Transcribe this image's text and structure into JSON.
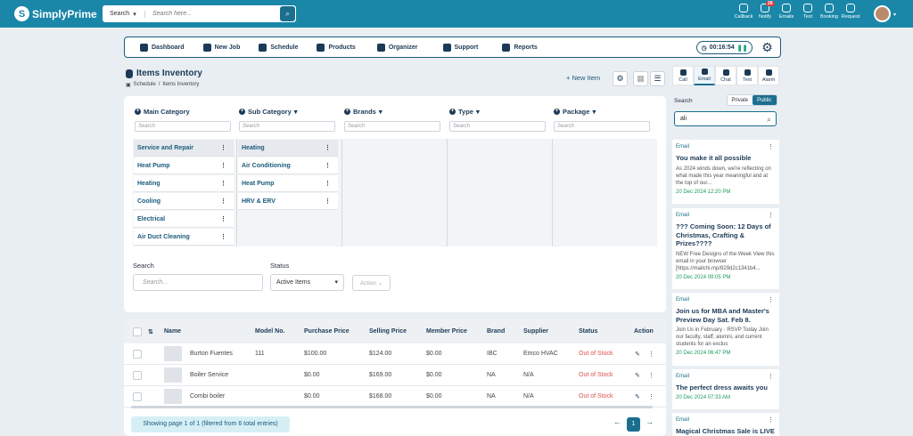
{
  "app": {
    "logo_text": "SimplyPrime"
  },
  "top_search": {
    "scope": "Search",
    "placeholder": "Search here..."
  },
  "top_actions": [
    {
      "label": "Callback",
      "icon": "phone-icon"
    },
    {
      "label": "Notify",
      "icon": "bell-icon",
      "badge": "28"
    },
    {
      "label": "Emails",
      "icon": "mail-icon"
    },
    {
      "label": "Text",
      "icon": "text-icon"
    },
    {
      "label": "Booking",
      "icon": "calendar-icon"
    },
    {
      "label": "Request",
      "icon": "chat-icon"
    }
  ],
  "nav": [
    {
      "label": "Dashboard",
      "icon": "dashboard-icon"
    },
    {
      "label": "New Job",
      "icon": "new-job-icon"
    },
    {
      "label": "Schedule",
      "icon": "schedule-icon"
    },
    {
      "label": "Products",
      "icon": "products-icon"
    },
    {
      "label": "Organizer",
      "icon": "organizer-icon"
    },
    {
      "label": "Support",
      "icon": "support-icon"
    },
    {
      "label": "Reports",
      "icon": "reports-icon"
    }
  ],
  "timer": "00:16:54",
  "page": {
    "title": "Items Inventory",
    "breadcrumb": [
      "Schedule",
      "/",
      "Items Inventory"
    ],
    "new_item_label": "+ New Item"
  },
  "filters": {
    "columns": [
      {
        "label": "Main Category",
        "placeholder": "Search"
      },
      {
        "label": "Sub Category",
        "placeholder": "Search"
      },
      {
        "label": "Brands",
        "placeholder": "Search"
      },
      {
        "label": "Type",
        "placeholder": "Search"
      },
      {
        "label": "Package",
        "placeholder": "Search"
      }
    ],
    "main_categories": [
      "Service and Repair",
      "Heat Pump",
      "Heating",
      "Cooling",
      "Electrical",
      "Air Duct Cleaning"
    ],
    "sub_categories": [
      "Heating",
      "Air Conditioning",
      "Heat Pump",
      "HRV & ERV"
    ]
  },
  "bottom_search": {
    "search_label": "Search",
    "search_placeholder": "Search...",
    "status_label": "Status",
    "status_value": "Active Items",
    "action_label": "Action"
  },
  "table": {
    "headers": [
      "Name",
      "Model No.",
      "Purchase Price",
      "Selling Price",
      "Member Price",
      "Brand",
      "Supplier",
      "Status",
      "Action"
    ],
    "rows": [
      {
        "name": "Burton Fuentes",
        "model": "111",
        "purchase": "$100.00",
        "selling": "$124.00",
        "member": "$0.00",
        "brand": "IBC",
        "supplier": "Emco HVAC",
        "status": "Out of Stock"
      },
      {
        "name": "Boiler Service",
        "model": "",
        "purchase": "$0.00",
        "selling": "$169.00",
        "member": "$0.00",
        "brand": "NA",
        "supplier": "N/A",
        "status": "Out of Stock"
      },
      {
        "name": "Combi boiler",
        "model": "",
        "purchase": "$0.00",
        "selling": "$168.00",
        "member": "$0.00",
        "brand": "NA",
        "supplier": "N/A",
        "status": "Out of Stock"
      }
    ],
    "page_info": "Showing page 1 of 1 (filtered from 6 total entries)",
    "current_page": "1"
  },
  "right_panel": {
    "tabs": [
      "Call",
      "Email",
      "Chat",
      "Text",
      "Alarm"
    ],
    "search_label": "Search",
    "toggle": [
      "Private",
      "Public"
    ],
    "query": "ali",
    "emails": [
      {
        "type": "Email",
        "title": "You make it all possible",
        "body": "As 2024 winds down, we're reflecting on what made this year meaningful and at the top of our...",
        "date": "20 Dec 2024 12:20 PM"
      },
      {
        "type": "Email",
        "title": "??? Coming Soon: 12 Days of Christmas, Crafting & Prizes????",
        "body": "NEW Free Designs of the Week View this email in your browser [https://mailchi.mp/829d2c1341b4...",
        "date": "20 Dec 2024 09:05 PM"
      },
      {
        "type": "Email",
        "title": "Join us for MBA and Master's Preview Day Sat. Feb 8.",
        "body": "Join Us in February - RSVP Today Join our faculty, staff, alumni, and current students for an exclus",
        "date": "20 Dec 2024 06:47 PM"
      },
      {
        "type": "Email",
        "title": "The perfect dress awaits you",
        "body": "",
        "date": "20 Dec 2024 07:33 AM"
      },
      {
        "type": "Email",
        "title": "Magical Christmas Sale is LIVE",
        "body": "",
        "date": ""
      }
    ]
  }
}
